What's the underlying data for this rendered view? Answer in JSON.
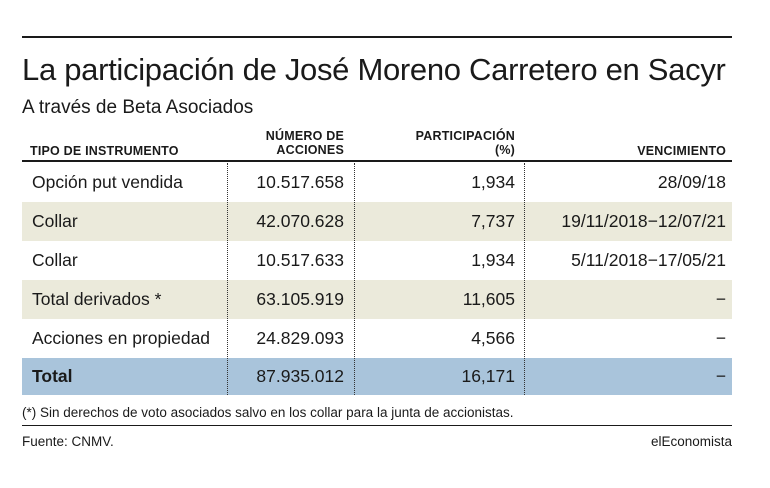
{
  "chart_data": {
    "type": "table",
    "title": "La participación de José Moreno Carretero en Sacyr",
    "subtitle": "A través de Beta Asociados",
    "columns": {
      "tipo": "TIPO DE INSTRUMENTO",
      "numero_line1": "NÚMERO DE",
      "numero_line2": "ACCIONES",
      "participacion_line1": "PARTICIPACIÓN",
      "participacion_line2": "(%)",
      "vencimiento": "VENCIMIENTO"
    },
    "rows": [
      {
        "tipo": "Opción put vendida",
        "acciones": "10.517.658",
        "participacion": "1,934",
        "vencimiento": "28/09/18",
        "shade": "none"
      },
      {
        "tipo": "Collar",
        "acciones": "42.070.628",
        "participacion": "7,737",
        "vencimiento": "19/11/2018−12/07/21",
        "shade": "light"
      },
      {
        "tipo": "Collar",
        "acciones": "10.517.633",
        "participacion": "1,934",
        "vencimiento": "5/11/2018−17/05/21",
        "shade": "none"
      },
      {
        "tipo": "Total derivados *",
        "acciones": "63.105.919",
        "participacion": "11,605",
        "vencimiento": "−",
        "shade": "light"
      },
      {
        "tipo": "Acciones en propiedad",
        "acciones": "24.829.093",
        "participacion": "4,566",
        "vencimiento": "−",
        "shade": "none"
      },
      {
        "tipo": "Total",
        "acciones": "87.935.012",
        "participacion": "16,171",
        "vencimiento": "−",
        "shade": "total"
      }
    ],
    "note": "(*) Sin derechos de voto asociados salvo en los collar para la junta de accionistas.",
    "source": "Fuente: CNMV.",
    "brand": "elEconomista",
    "colors": {
      "light_row": "#ebeadb",
      "total_row": "#a9c4db",
      "text": "#1a1a1a"
    }
  }
}
